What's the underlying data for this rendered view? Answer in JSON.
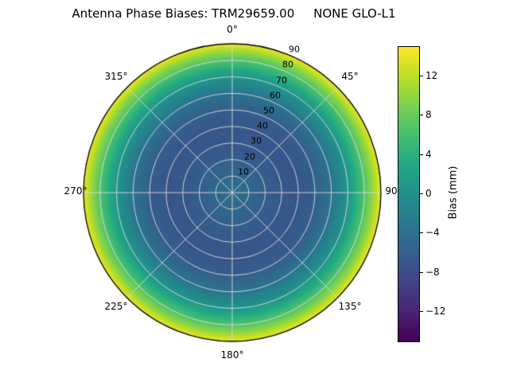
{
  "chart_data": {
    "type": "heatmap",
    "projection": "polar",
    "title": "Antenna Phase Biases: TRM29659.00     NONE GLO-L1",
    "angular_ticks": [
      "0°",
      "45°",
      "90",
      "135°",
      "180°",
      "225°",
      "270°",
      "315°"
    ],
    "radial_ticks": [
      "10",
      "20",
      "30",
      "40",
      "50",
      "60",
      "70",
      "80",
      "90"
    ],
    "profile": {
      "zenith": [
        0,
        10,
        20,
        30,
        40,
        50,
        60,
        70,
        80,
        85,
        90
      ],
      "bias_mm": [
        -3.5,
        -5.0,
        -6.0,
        -6.8,
        -7.0,
        -6.0,
        -3.5,
        0.5,
        6.5,
        10.0,
        14.0
      ]
    },
    "colorbar": {
      "label": "Bias (mm)",
      "ticks": [
        12,
        8,
        4,
        0,
        -4,
        -8,
        -12
      ],
      "tick_labels": [
        "12",
        "8",
        "4",
        "0",
        "−4",
        "−8",
        "−12"
      ],
      "vmin": -15,
      "vmax": 15,
      "colormap": "viridis"
    },
    "colormap_stops": [
      [
        0.0,
        "#440154"
      ],
      [
        0.1,
        "#482475"
      ],
      [
        0.2,
        "#414487"
      ],
      [
        0.3,
        "#355f8d"
      ],
      [
        0.4,
        "#2a788e"
      ],
      [
        0.5,
        "#21918c"
      ],
      [
        0.6,
        "#22a884"
      ],
      [
        0.7,
        "#44bf70"
      ],
      [
        0.8,
        "#7ad151"
      ],
      [
        0.9,
        "#bddf26"
      ],
      [
        1.0,
        "#fde725"
      ]
    ],
    "style": {
      "background": "#ffffff",
      "grid_color": "#dcdcdc",
      "edge_color": "#000000"
    }
  }
}
